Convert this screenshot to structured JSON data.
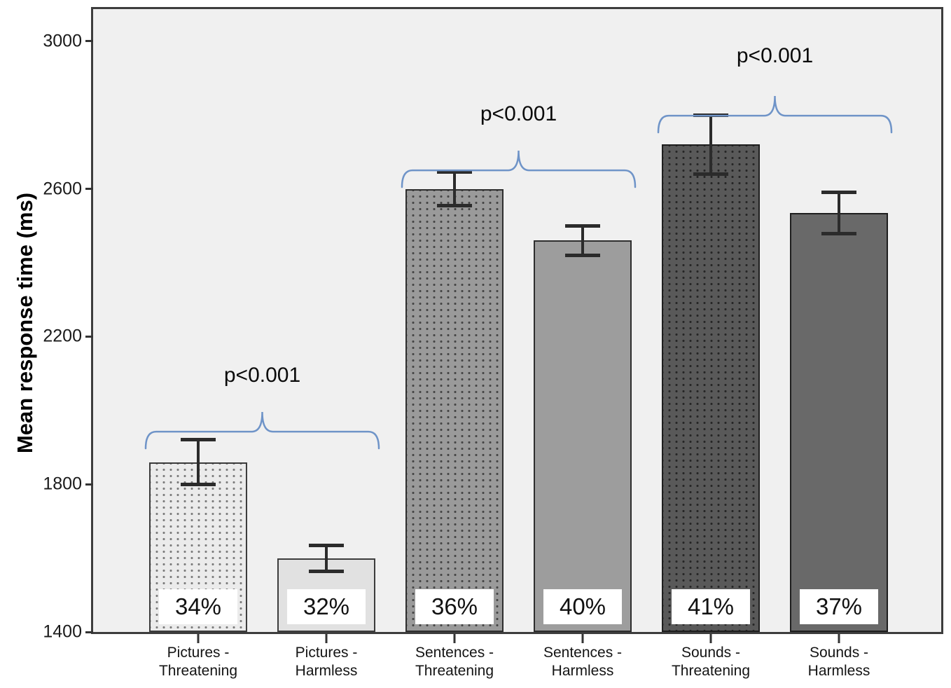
{
  "chart_data": {
    "type": "bar",
    "title": "",
    "ylabel": "Mean response time (ms)",
    "xlabel": "",
    "ylim": [
      1400,
      3000
    ],
    "yticks": [
      1400,
      1800,
      2200,
      2600,
      3000
    ],
    "grid": false,
    "legend": "none",
    "categories": [
      "Pictures - Threatening",
      "Pictures - Harmless",
      "Sentences - Threatening",
      "Sentences - Harmless",
      "Sounds - Threatening",
      "Sounds - Harmless"
    ],
    "bars": [
      {
        "category": "Pictures - Threatening",
        "label_lines": [
          "Pictures -",
          "Threatening"
        ],
        "value": 1860,
        "error": 65,
        "percent": "34%",
        "fill": "#ebebeb",
        "dots": "#7d7d7d",
        "border": "#3c3c3c"
      },
      {
        "category": "Pictures - Harmless",
        "label_lines": [
          "Pictures -",
          "Harmless"
        ],
        "value": 1600,
        "error": 40,
        "percent": "32%",
        "fill": "#e1e1e1",
        "dots": null,
        "border": "#3c3c3c"
      },
      {
        "category": "Sentences - Threatening",
        "label_lines": [
          "Sentences -",
          "Threatening"
        ],
        "value": 2600,
        "error": 50,
        "percent": "36%",
        "fill": "#9a9a9a",
        "dots": "#474747",
        "border": "#2e2e2e"
      },
      {
        "category": "Sentences - Harmless",
        "label_lines": [
          "Sentences -",
          "Harmless"
        ],
        "value": 2460,
        "error": 45,
        "percent": "40%",
        "fill": "#9d9d9d",
        "dots": null,
        "border": "#2e2e2e"
      },
      {
        "category": "Sounds - Threatening",
        "label_lines": [
          "Sounds -",
          "Threatening"
        ],
        "value": 2720,
        "error": 85,
        "percent": "41%",
        "fill": "#595959",
        "dots": "#272727",
        "border": "#1e1e1e"
      },
      {
        "category": "Sounds - Harmless",
        "label_lines": [
          "Sounds -",
          "Harmless"
        ],
        "value": 2535,
        "error": 60,
        "percent": "37%",
        "fill": "#696969",
        "dots": null,
        "border": "#1e1e1e"
      }
    ],
    "significance": [
      {
        "pair": [
          0,
          1
        ],
        "label": "p<0.001"
      },
      {
        "pair": [
          2,
          3
        ],
        "label": "p<0.001"
      },
      {
        "pair": [
          4,
          5
        ],
        "label": "p<0.001"
      }
    ],
    "colors": {
      "plot_background": "#f0f0f0",
      "plot_border": "#3d3d3d",
      "brace": "#6f94c8",
      "error_bar": "#2b2b2b",
      "axis_text": "#1a1a1a"
    }
  }
}
